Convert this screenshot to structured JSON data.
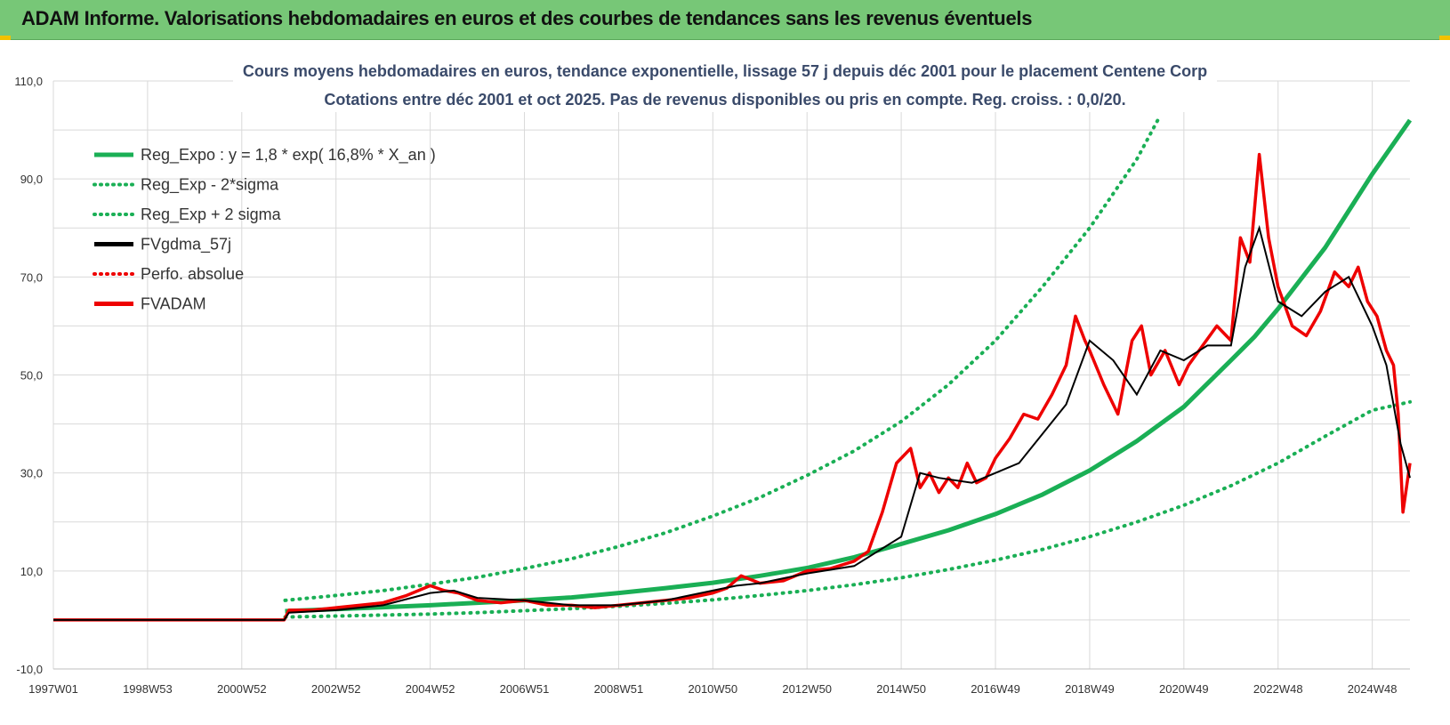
{
  "header": {
    "title": "ADAM Informe. Valorisations hebdomadaires en euros et des courbes de tendances sans les revenus éventuels"
  },
  "colors": {
    "banner": "#77c777",
    "trend": "#1aaf55",
    "smooth": "#000000",
    "price": "#ee0000",
    "grid": "#d9d9d9",
    "title": "#3a4a6a"
  },
  "chart_data": {
    "type": "line",
    "title": "Cours moyens hebdomadaires en euros, tendance exponentielle, lissage 57 j depuis déc 2001 pour le placement Centene Corp",
    "subtitle": "Cotations entre déc 2001 et oct 2025. Pas de revenus disponibles ou pris en compte. Reg. croiss. : 0,0/20.",
    "x_axis": {
      "range": [
        1997.0,
        2025.8
      ],
      "ticks": [
        {
          "label": "1997W01",
          "x": 1997.0
        },
        {
          "label": "1998W53",
          "x": 1999.0
        },
        {
          "label": "2000W52",
          "x": 2001.0
        },
        {
          "label": "2002W52",
          "x": 2003.0
        },
        {
          "label": "2004W52",
          "x": 2005.0
        },
        {
          "label": "2006W51",
          "x": 2007.0
        },
        {
          "label": "2008W51",
          "x": 2009.0
        },
        {
          "label": "2010W50",
          "x": 2011.0
        },
        {
          "label": "2012W50",
          "x": 2013.0
        },
        {
          "label": "2014W50",
          "x": 2015.0
        },
        {
          "label": "2016W49",
          "x": 2017.0
        },
        {
          "label": "2018W49",
          "x": 2019.0
        },
        {
          "label": "2020W49",
          "x": 2021.0
        },
        {
          "label": "2022W48",
          "x": 2023.0
        },
        {
          "label": "2024W48",
          "x": 2025.0
        }
      ]
    },
    "y_axis": {
      "range": [
        -10,
        110
      ],
      "ticks": [
        {
          "label": "-10,0",
          "v": -10
        },
        {
          "label": "10,0",
          "v": 10
        },
        {
          "label": "30,0",
          "v": 30
        },
        {
          "label": "50,0",
          "v": 50
        },
        {
          "label": "70,0",
          "v": 70
        },
        {
          "label": "90,0",
          "v": 90
        },
        {
          "label": "110,0",
          "v": 110
        }
      ],
      "gridlines": [
        -10,
        0,
        10,
        20,
        30,
        40,
        50,
        60,
        70,
        80,
        90,
        100,
        110
      ]
    },
    "grid": true,
    "legend_position": "top-left",
    "legend": [
      {
        "label": "Reg_Expo : y = 1,8 * exp( 16,8% *  X_an )",
        "style": "solid",
        "color": "#1aaf55"
      },
      {
        "label": "Reg_Exp - 2*sigma",
        "style": "dotted",
        "color": "#1aaf55"
      },
      {
        "label": "Reg_Exp + 2 sigma",
        "style": "dotted",
        "color": "#1aaf55"
      },
      {
        "label": "FVgdma_57j",
        "style": "solid",
        "color": "#000000"
      },
      {
        "label": "Perfo. absolue",
        "style": "dotted",
        "color": "#ee0000"
      },
      {
        "label": "FVADAM",
        "style": "solid",
        "color": "#ee0000"
      }
    ],
    "series": [
      {
        "name": "Reg_Expo : y = 1,8 * exp( 16,8% *  X_an )",
        "color": "#1aaf55",
        "style": "solid",
        "x": [
          2001.92,
          2003,
          2004,
          2005,
          2006,
          2007,
          2008,
          2009,
          2010,
          2011,
          2012,
          2013,
          2014,
          2015,
          2016,
          2017,
          2018,
          2019,
          2020,
          2021,
          2022,
          2022.5,
          2023,
          2024,
          2025,
          2025.8
        ],
        "y": [
          1.8,
          2.2,
          2.6,
          3.0,
          3.5,
          4.0,
          4.6,
          5.5,
          6.5,
          7.6,
          9.0,
          10.6,
          12.8,
          15.5,
          18.3,
          21.6,
          25.6,
          30.5,
          36.5,
          43.5,
          53.0,
          57.8,
          63.5,
          76.0,
          91.0,
          102.0
        ]
      },
      {
        "name": "Reg_Exp - 2*sigma",
        "color": "#1aaf55",
        "style": "dotted",
        "x": [
          2001.92,
          2003,
          2004,
          2005,
          2006,
          2007,
          2008,
          2009,
          2010,
          2011,
          2012,
          2013,
          2014,
          2015,
          2016,
          2017,
          2018,
          2019,
          2020,
          2021,
          2022,
          2023,
          2024,
          2025,
          2025.8
        ],
        "y": [
          0.6,
          0.8,
          1.0,
          1.2,
          1.5,
          1.9,
          2.3,
          2.8,
          3.4,
          4.1,
          5.0,
          6.0,
          7.2,
          8.6,
          10.3,
          12.2,
          14.4,
          17.0,
          20.0,
          23.4,
          27.4,
          32.0,
          37.5,
          42.8,
          44.5
        ]
      },
      {
        "name": "Reg_Exp + 2 sigma",
        "color": "#1aaf55",
        "style": "dotted",
        "x": [
          2001.92,
          2003,
          2004,
          2005,
          2006,
          2007,
          2008,
          2009,
          2010,
          2011,
          2012,
          2013,
          2014,
          2015,
          2016,
          2017,
          2018,
          2019,
          2020,
          2020.5
        ],
        "y": [
          4.0,
          5.0,
          6.0,
          7.3,
          8.7,
          10.5,
          12.5,
          15.0,
          17.8,
          21.2,
          25.0,
          29.5,
          34.5,
          40.5,
          48.0,
          57.0,
          68.0,
          80.0,
          94.0,
          103.0
        ]
      },
      {
        "name": "FVgdma_57j",
        "color": "#000000",
        "style": "solid",
        "x": [
          1997.0,
          2001.9,
          2002.0,
          2003.0,
          2004.0,
          2005.0,
          2005.5,
          2006.0,
          2007.0,
          2008.0,
          2009.0,
          2010.0,
          2011.0,
          2011.5,
          2012.0,
          2013.0,
          2014.0,
          2014.5,
          2015.0,
          2015.4,
          2015.8,
          2016.5,
          2017.0,
          2017.5,
          2018.0,
          2018.5,
          2019.0,
          2019.5,
          2020.0,
          2020.5,
          2021.0,
          2021.5,
          2022.0,
          2022.3,
          2022.6,
          2023.0,
          2023.5,
          2024.0,
          2024.5,
          2025.0,
          2025.3,
          2025.6,
          2025.8
        ],
        "y": [
          0,
          0,
          1.5,
          2.0,
          3.0,
          5.5,
          6.0,
          4.5,
          4.0,
          3.0,
          3.0,
          4.0,
          6.0,
          7.0,
          7.5,
          9.5,
          11.0,
          14.0,
          17.0,
          30.0,
          29.0,
          28.0,
          30.0,
          32.0,
          38.0,
          44.0,
          57.0,
          53.0,
          46.0,
          55.0,
          53.0,
          56.0,
          56.0,
          72.0,
          80.0,
          65.0,
          62.0,
          67.0,
          70.0,
          60.0,
          52.0,
          36.0,
          29.0
        ]
      },
      {
        "name": "FVADAM",
        "color": "#ee0000",
        "style": "solid",
        "x": [
          1997.0,
          2001.9,
          2002.0,
          2002.5,
          2003.0,
          2003.5,
          2004.0,
          2004.5,
          2005.0,
          2005.3,
          2005.6,
          2006.0,
          2006.5,
          2007.0,
          2007.5,
          2008.0,
          2008.5,
          2009.0,
          2009.5,
          2010.0,
          2010.5,
          2011.0,
          2011.3,
          2011.6,
          2012.0,
          2012.5,
          2013.0,
          2013.5,
          2014.0,
          2014.3,
          2014.6,
          2014.9,
          2015.2,
          2015.4,
          2015.6,
          2015.8,
          2016.0,
          2016.2,
          2016.4,
          2016.6,
          2016.8,
          2017.0,
          2017.3,
          2017.6,
          2017.9,
          2018.2,
          2018.5,
          2018.7,
          2018.9,
          2019.0,
          2019.3,
          2019.6,
          2019.9,
          2020.1,
          2020.3,
          2020.6,
          2020.9,
          2021.1,
          2021.4,
          2021.7,
          2022.0,
          2022.2,
          2022.4,
          2022.6,
          2022.8,
          2023.0,
          2023.3,
          2023.6,
          2023.9,
          2024.2,
          2024.5,
          2024.7,
          2024.9,
          2025.1,
          2025.3,
          2025.45,
          2025.55,
          2025.65,
          2025.8
        ],
        "y": [
          0,
          0,
          2.0,
          2.0,
          2.5,
          3.0,
          3.5,
          5.0,
          7.0,
          6.0,
          5.5,
          4.0,
          3.5,
          4.0,
          3.0,
          3.0,
          2.5,
          3.0,
          3.5,
          4.0,
          4.5,
          5.5,
          6.5,
          9.0,
          7.5,
          8.0,
          10.0,
          10.5,
          12.0,
          14.0,
          22.0,
          32.0,
          35.0,
          27.0,
          30.0,
          26.0,
          29.0,
          27.0,
          32.0,
          28.0,
          29.0,
          33.0,
          37.0,
          42.0,
          41.0,
          46.0,
          52.0,
          62.0,
          57.0,
          55.0,
          48.0,
          42.0,
          57.0,
          60.0,
          50.0,
          55.0,
          48.0,
          52.0,
          56.0,
          60.0,
          57.0,
          78.0,
          73.0,
          95.0,
          78.0,
          68.0,
          60.0,
          58.0,
          63.0,
          71.0,
          68.0,
          72.0,
          65.0,
          62.0,
          55.0,
          52.0,
          42.0,
          22.0,
          32.0
        ]
      }
    ]
  }
}
